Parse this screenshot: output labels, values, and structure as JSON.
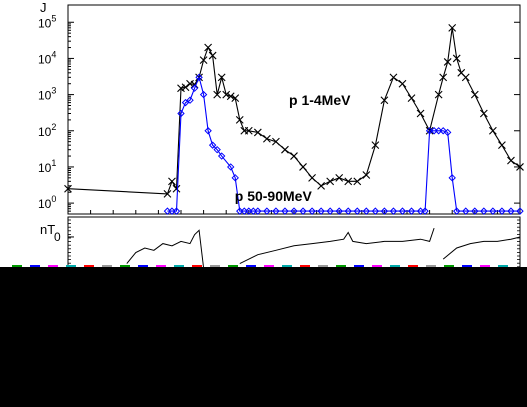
{
  "colors": {
    "background": "#ffffff",
    "axis": "#000000",
    "proton_low": "#000000",
    "proton_high": "#0000ff",
    "field": "#000000",
    "strip_colors": [
      "#009900",
      "#0000ff",
      "#ff00ff",
      "#00aaaa",
      "#ff0000",
      "#999999"
    ],
    "blackout": "#000000"
  },
  "chart_data": [
    {
      "type": "line",
      "panel": "proton-flux",
      "ylabel_partial": "J",
      "yscale": "log",
      "ylim": [
        0.5,
        300000
      ],
      "xlim": [
        0,
        100
      ],
      "yticks": [
        {
          "value": 1,
          "base": "10",
          "exp": "0"
        },
        {
          "value": 10,
          "base": "10",
          "exp": "1"
        },
        {
          "value": 100,
          "base": "10",
          "exp": "2"
        },
        {
          "value": 1000,
          "base": "10",
          "exp": "3"
        },
        {
          "value": 10000,
          "base": "10",
          "exp": "4"
        },
        {
          "value": 100000,
          "base": "10",
          "exp": "5"
        }
      ],
      "grid": false,
      "series": [
        {
          "name": "p 1-4MeV",
          "color": "#000000",
          "marker": "x",
          "x": [
            0,
            22,
            23,
            24,
            25,
            26,
            27,
            28,
            29,
            30,
            31,
            32,
            33,
            34,
            35,
            36,
            37,
            38,
            39,
            40,
            42,
            44,
            46,
            48,
            50,
            52,
            54,
            56,
            58,
            60,
            62,
            64,
            66,
            68,
            70,
            72,
            74,
            76,
            78,
            80,
            82,
            83,
            84,
            85,
            86,
            87,
            88,
            90,
            92,
            94,
            96,
            98,
            100
          ],
          "y": [
            2.5,
            1.8,
            4,
            2.5,
            1500,
            1600,
            2000,
            1900,
            3000,
            9000,
            20000,
            12000,
            1000,
            3000,
            1000,
            900,
            800,
            200,
            100,
            100,
            90,
            60,
            50,
            30,
            20,
            10,
            5,
            3,
            4,
            5,
            4,
            4,
            6,
            40,
            700,
            3000,
            2000,
            800,
            300,
            100,
            1000,
            3000,
            8000,
            70000,
            10000,
            4000,
            3000,
            1000,
            300,
            100,
            40,
            15,
            10
          ]
        },
        {
          "name": "p 50-90MeV",
          "color": "#0000ff",
          "marker": "diamond",
          "x": [
            22,
            23,
            24,
            25,
            26,
            27,
            28,
            29,
            30,
            31,
            32,
            33,
            34,
            36,
            37,
            38,
            39,
            40,
            41,
            42,
            44,
            46,
            48,
            50,
            52,
            54,
            56,
            58,
            60,
            62,
            64,
            66,
            68,
            70,
            72,
            74,
            76,
            78,
            79,
            80,
            81,
            82,
            83,
            84,
            85,
            86,
            88,
            90,
            92,
            94,
            96,
            98,
            100
          ],
          "y": [
            0.6,
            0.6,
            0.6,
            300,
            600,
            700,
            1500,
            3000,
            1000,
            100,
            40,
            30,
            20,
            10,
            5,
            0.6,
            0.6,
            0.6,
            0.6,
            0.6,
            0.6,
            0.6,
            0.6,
            0.6,
            0.6,
            0.6,
            0.6,
            0.6,
            0.6,
            0.6,
            0.6,
            0.6,
            0.6,
            0.6,
            0.6,
            0.6,
            0.6,
            0.6,
            0.6,
            100,
            100,
            100,
            100,
            90,
            5,
            0.6,
            0.6,
            0.6,
            0.6,
            0.6,
            0.6,
            0.6,
            0.6
          ]
        }
      ],
      "annotations": [
        {
          "text": "p 1-4MeV",
          "series": 0,
          "near_x": 50,
          "near_y": 400
        },
        {
          "text": "p 50-90MeV",
          "series": 1,
          "near_x": 38,
          "near_y": 0.9
        }
      ]
    },
    {
      "type": "line",
      "panel": "magnetic-field",
      "ylabel": "nT",
      "yticks": [
        {
          "value": 0,
          "label": "0"
        }
      ],
      "ylim": [
        -14,
        9
      ],
      "xlim": [
        0,
        100
      ],
      "series": [
        {
          "name": "",
          "color": "#000000",
          "segments": [
            {
              "x": [
                13,
                15,
                17,
                19,
                21,
                23,
                25,
                27,
                28,
                29,
                30
              ],
              "y": [
                -12,
                -7,
                -5,
                -6,
                -3,
                -4,
                -2,
                -3,
                1,
                3,
                -14
              ]
            },
            {
              "x": [
                38,
                42,
                46,
                50,
                54,
                58,
                61,
                62,
                63,
                66,
                70,
                74,
                78,
                80,
                81
              ],
              "y": [
                -12,
                -8,
                -6,
                -4,
                -3,
                -2,
                -1,
                2,
                -2,
                -3,
                -2,
                -2,
                -1,
                -2,
                4
              ]
            },
            {
              "x": [
                83,
                86,
                89,
                92,
                95,
                98,
                100
              ],
              "y": [
                -10,
                -5,
                -3,
                -2,
                -2,
                -1,
                0
              ]
            }
          ]
        }
      ]
    }
  ]
}
